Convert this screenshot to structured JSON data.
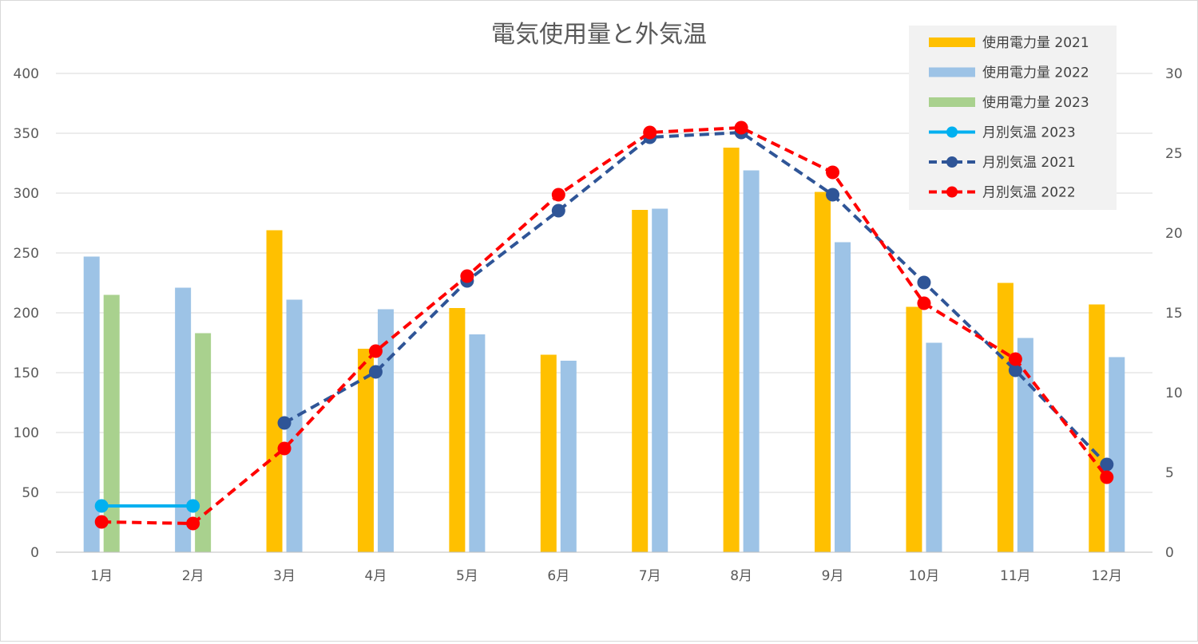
{
  "chart_data": {
    "type": "bar",
    "title": "電気使用量と外気温",
    "categories": [
      "1月",
      "2月",
      "3月",
      "4月",
      "5月",
      "6月",
      "7月",
      "8月",
      "9月",
      "10月",
      "11月",
      "12月"
    ],
    "y_left": {
      "ticks": [
        "0",
        "50",
        "100",
        "150",
        "200",
        "250",
        "300",
        "350",
        "400"
      ],
      "range": [
        0,
        400
      ]
    },
    "y_right": {
      "ticks": [
        "0",
        "5",
        "10",
        "15",
        "20",
        "25",
        "30"
      ],
      "range": [
        0,
        30
      ]
    },
    "grid": true,
    "legend_position": "top-right",
    "bar_series": [
      {
        "name": "使用電力量 2021",
        "color": "#FFC000",
        "values": [
          null,
          null,
          269,
          170,
          204,
          165,
          286,
          338,
          301,
          205,
          225,
          207
        ]
      },
      {
        "name": "使用電力量 2022",
        "color": "#9DC3E6",
        "values": [
          247,
          221,
          211,
          203,
          182,
          160,
          287,
          319,
          259,
          175,
          179,
          163
        ]
      },
      {
        "name": "使用電力量 2023",
        "color": "#A9D18E",
        "values": [
          215,
          183,
          null,
          null,
          null,
          null,
          null,
          null,
          null,
          null,
          null,
          null
        ]
      }
    ],
    "line_series": [
      {
        "name": "月別気温 2023",
        "color": "#00B0F0",
        "style": "solid",
        "values": [
          2.9,
          2.9,
          null,
          null,
          null,
          null,
          null,
          null,
          null,
          null,
          null,
          null
        ]
      },
      {
        "name": "月別気温 2021",
        "color": "#2F5597",
        "style": "dashed",
        "values": [
          null,
          null,
          8.1,
          11.3,
          17.0,
          21.4,
          26.0,
          26.3,
          22.4,
          16.9,
          11.4,
          5.5
        ]
      },
      {
        "name": "月別気温 2022",
        "color": "#FF0000",
        "style": "dashed",
        "values": [
          1.9,
          1.8,
          6.5,
          12.6,
          17.3,
          22.4,
          26.3,
          26.6,
          23.8,
          15.6,
          12.1,
          4.7
        ]
      }
    ],
    "legend": [
      {
        "label": "使用電力量 2021",
        "kind": "bar",
        "color": "#FFC000"
      },
      {
        "label": "使用電力量 2022",
        "kind": "bar",
        "color": "#9DC3E6"
      },
      {
        "label": "使用電力量 2023",
        "kind": "bar",
        "color": "#A9D18E"
      },
      {
        "label": "月別気温 2023",
        "kind": "line-solid",
        "color": "#00B0F0"
      },
      {
        "label": "月別気温 2021",
        "kind": "line-dashed",
        "color": "#2F5597"
      },
      {
        "label": "月別気温 2022",
        "kind": "line-dashed",
        "color": "#FF0000"
      }
    ]
  }
}
